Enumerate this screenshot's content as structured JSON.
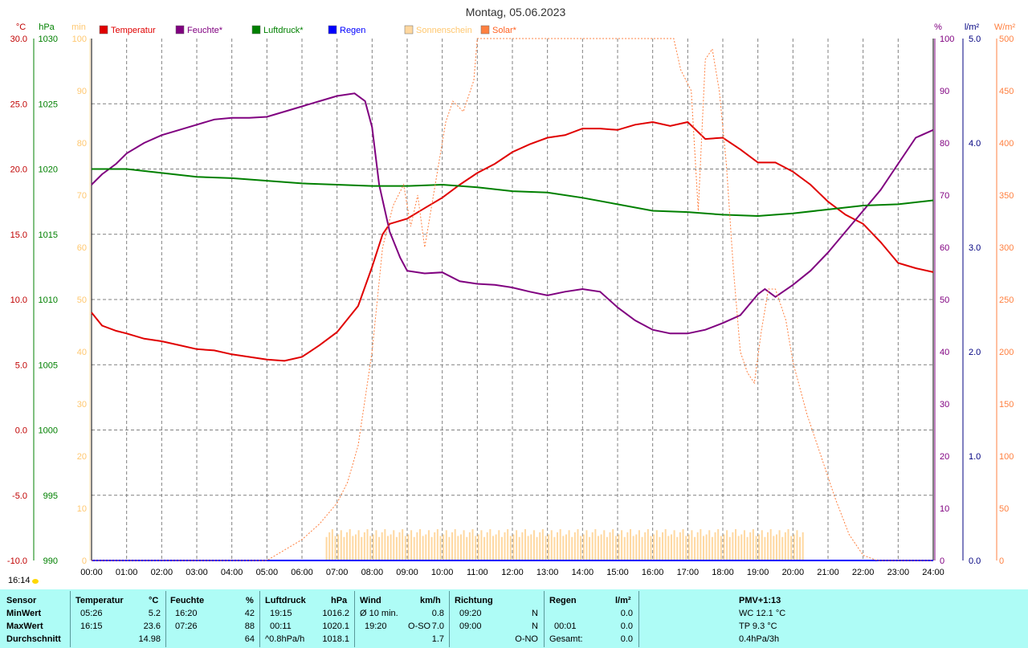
{
  "title": "Montag, 05.06.2023",
  "left_units": {
    "temp": "°C",
    "press": "hPa",
    "sun": "min"
  },
  "right_units": {
    "hum": "%",
    "rain": "l/m²",
    "solar": "W/m²"
  },
  "legend": [
    {
      "label": "Temperatur",
      "color": "#e00000"
    },
    {
      "label": "Feuchte*",
      "color": "#800080"
    },
    {
      "label": "Luftdruck*",
      "color": "#008000"
    },
    {
      "label": "Regen",
      "color": "#0000ff"
    },
    {
      "label": "Sonnenschein",
      "color": "#ffd8a0"
    },
    {
      "label": "Solar*",
      "color": "#ff8040"
    }
  ],
  "axis_labels": {
    "temp": [
      "30.0",
      "25.0",
      "20.0",
      "15.0",
      "10.0",
      "5.0",
      "0.0",
      "-5.0",
      "-10.0"
    ],
    "press": [
      "1030",
      "1025",
      "1020",
      "1015",
      "1010",
      "1005",
      "1000",
      "995",
      "990"
    ],
    "sun": [
      "100",
      "90",
      "80",
      "70",
      "60",
      "50",
      "40",
      "30",
      "20",
      "10",
      "0"
    ],
    "hum": [
      "100",
      "90",
      "80",
      "70",
      "60",
      "50",
      "40",
      "30",
      "20",
      "10",
      "0"
    ],
    "rain": [
      "5.0",
      "4.0",
      "3.0",
      "2.0",
      "1.0",
      "0.0"
    ],
    "solar": [
      "500",
      "450",
      "400",
      "350",
      "300",
      "250",
      "200",
      "150",
      "100",
      "50",
      "0"
    ],
    "time": [
      "00:00",
      "01:00",
      "02:00",
      "03:00",
      "04:00",
      "05:00",
      "06:00",
      "07:00",
      "08:00",
      "09:00",
      "10:00",
      "11:00",
      "12:00",
      "13:00",
      "14:00",
      "15:00",
      "16:00",
      "17:00",
      "18:00",
      "19:00",
      "20:00",
      "21:00",
      "22:00",
      "23:00",
      "24:00"
    ]
  },
  "sunrise_time": "16:14",
  "chart_data": {
    "type": "line",
    "x_unit": "hours",
    "series": [
      {
        "name": "Temperatur",
        "unit": "°C",
        "color": "#e00000",
        "x": [
          0,
          0.3,
          0.7,
          1,
          1.5,
          2,
          2.5,
          3,
          3.5,
          4,
          4.5,
          5,
          5.5,
          6,
          6.5,
          7,
          7.3,
          7.6,
          8,
          8.3,
          8.5,
          9,
          9.5,
          10,
          10.5,
          11,
          11.5,
          12,
          12.5,
          13,
          13.5,
          14,
          14.5,
          15,
          15.5,
          16,
          16.5,
          17,
          17.5,
          18,
          18.5,
          19,
          19.5,
          20,
          20.5,
          21,
          21.5,
          22,
          22.5,
          23,
          23.5,
          24
        ],
        "values": [
          9.0,
          8.0,
          7.6,
          7.4,
          7.0,
          6.8,
          6.5,
          6.2,
          6.1,
          5.8,
          5.6,
          5.4,
          5.3,
          5.6,
          6.5,
          7.5,
          8.5,
          9.5,
          12.5,
          15.0,
          15.8,
          16.2,
          17.0,
          17.8,
          18.8,
          19.7,
          20.4,
          21.3,
          21.9,
          22.4,
          22.6,
          23.1,
          23.1,
          23.0,
          23.4,
          23.6,
          23.3,
          23.6,
          22.3,
          22.4,
          21.5,
          20.5,
          20.5,
          19.8,
          18.8,
          17.5,
          16.5,
          15.8,
          14.4,
          12.8,
          12.4,
          12.1
        ]
      },
      {
        "name": "Feuchte*",
        "unit": "%",
        "color": "#800080",
        "x": [
          0,
          0.3,
          0.7,
          1,
          1.5,
          2,
          2.5,
          3,
          3.5,
          4,
          4.5,
          5,
          5.5,
          6,
          6.5,
          7,
          7.5,
          7.8,
          8,
          8.2,
          8.5,
          8.8,
          9,
          9.5,
          10,
          10.5,
          11,
          11.5,
          12,
          12.5,
          13,
          13.5,
          14,
          14.5,
          15,
          15.5,
          16,
          16.5,
          17,
          17.5,
          18,
          18.5,
          19,
          19.2,
          19.5,
          20,
          20.5,
          21,
          21.5,
          22,
          22.5,
          23,
          23.5,
          24
        ],
        "values": [
          72,
          74,
          76,
          78,
          80,
          81.5,
          82.5,
          83.5,
          84.5,
          84.8,
          84.8,
          85,
          86,
          87,
          88,
          89,
          89.5,
          88,
          83,
          72,
          63,
          58,
          55.5,
          55,
          55.2,
          53.5,
          53,
          52.8,
          52.3,
          51.5,
          50.8,
          51.5,
          52,
          51.5,
          48.5,
          46,
          44.2,
          43.5,
          43.5,
          44.2,
          45.5,
          47,
          51,
          52,
          50.5,
          52.8,
          55.5,
          59,
          63,
          67,
          71,
          76,
          81,
          82.5
        ]
      },
      {
        "name": "Luftdruck*",
        "unit": "hPa",
        "color": "#008000",
        "x": [
          0,
          1,
          2,
          3,
          4,
          5,
          6,
          7,
          8,
          9,
          10,
          11,
          12,
          13,
          14,
          15,
          16,
          17,
          18,
          19,
          20,
          21,
          22,
          23,
          24
        ],
        "values": [
          1020.0,
          1020.0,
          1019.7,
          1019.4,
          1019.3,
          1019.1,
          1018.9,
          1018.8,
          1018.7,
          1018.7,
          1018.8,
          1018.6,
          1018.3,
          1018.2,
          1017.8,
          1017.3,
          1016.8,
          1016.7,
          1016.5,
          1016.4,
          1016.6,
          1016.9,
          1017.2,
          1017.3,
          1017.6
        ]
      },
      {
        "name": "Regen",
        "unit": "l/m²",
        "color": "#0000ff",
        "x": [
          0,
          24
        ],
        "values": [
          0,
          0
        ]
      },
      {
        "name": "Solar*",
        "unit": "W/m²",
        "color": "#ff8040",
        "x": [
          0,
          5.0,
          5.5,
          6,
          6.5,
          7,
          7.3,
          7.6,
          8,
          8.3,
          8.6,
          8.9,
          9.1,
          9.3,
          9.5,
          9.8,
          10.1,
          10.3,
          10.6,
          10.9,
          11.0,
          16.6,
          16.8,
          17.1,
          17.3,
          17.5,
          17.7,
          17.9,
          18.1,
          18.3,
          18.5,
          18.7,
          18.9,
          19.1,
          19.3,
          19.5,
          19.8,
          20.0,
          20.4,
          20.8,
          21.2,
          21.6,
          22.0,
          22.4,
          22.8,
          23.2,
          24
        ],
        "values": [
          0,
          0,
          10,
          20,
          35,
          55,
          75,
          110,
          200,
          300,
          340,
          360,
          320,
          350,
          300,
          360,
          420,
          440,
          430,
          460,
          500,
          500,
          470,
          450,
          335,
          480,
          490,
          450,
          380,
          280,
          200,
          180,
          170,
          220,
          260,
          260,
          230,
          190,
          140,
          100,
          60,
          25,
          5,
          0,
          0,
          0,
          0
        ]
      },
      {
        "name": "Sonnenschein",
        "unit": "min",
        "color": "#ffd8a0",
        "x": [
          6.7,
          20.3
        ],
        "values": [
          5,
          5
        ]
      }
    ],
    "axes": {
      "x_range": [
        0,
        24
      ],
      "temp_range": [
        -10,
        30
      ],
      "press_range": [
        990,
        1030
      ],
      "sun_range": [
        0,
        100
      ],
      "hum_range": [
        0,
        100
      ],
      "rain_range": [
        0,
        5
      ],
      "solar_range": [
        0,
        500
      ]
    },
    "grid": true,
    "legend_position": "top"
  },
  "footer": {
    "row_labels": [
      "Sensor",
      "MinWert",
      "MaxWert",
      "Durchschnitt"
    ],
    "temp": {
      "head": "Temperatur",
      "unit": "°C",
      "min_time": "05:26",
      "min_val": "5.2",
      "max_time": "16:15",
      "max_val": "23.6",
      "avg": "14.98"
    },
    "hum": {
      "head": "Feuchte",
      "unit": "%",
      "min_time": "16:20",
      "min_val": "42",
      "max_time": "07:26",
      "max_val": "88",
      "avg": "64"
    },
    "press": {
      "head": "Luftdruck",
      "unit": "hPa",
      "min_time": "19:15",
      "min_val": "1016.2",
      "max_time": "00:11",
      "max_val": "1020.1",
      "trend": "^0.8hPa/h",
      "avg": "1018.1"
    },
    "wind": {
      "head": "Wind",
      "unit": "km/h",
      "l1": "Ø 10 min.",
      "v1": "0.8",
      "l2": "19:20",
      "d2": "O-SO",
      "v2": "7.0",
      "v3": "1.7"
    },
    "dir": {
      "head": "Richtung",
      "t1": "09:20",
      "d1": "N",
      "t2": "09:00",
      "d2": "N",
      "d3": "O-NO"
    },
    "rain": {
      "head": "Regen",
      "unit": "l/m²",
      "t2": "00:01",
      "v1": "0.0",
      "v2": "0.0",
      "l3": "Gesamt:",
      "v3": "0.0"
    },
    "pmv": {
      "head": "PMV+1:13",
      "wc": "WC 12.1 °C",
      "tp": "TP 9.3 °C",
      "trend": "0.4hPa/3h"
    }
  }
}
